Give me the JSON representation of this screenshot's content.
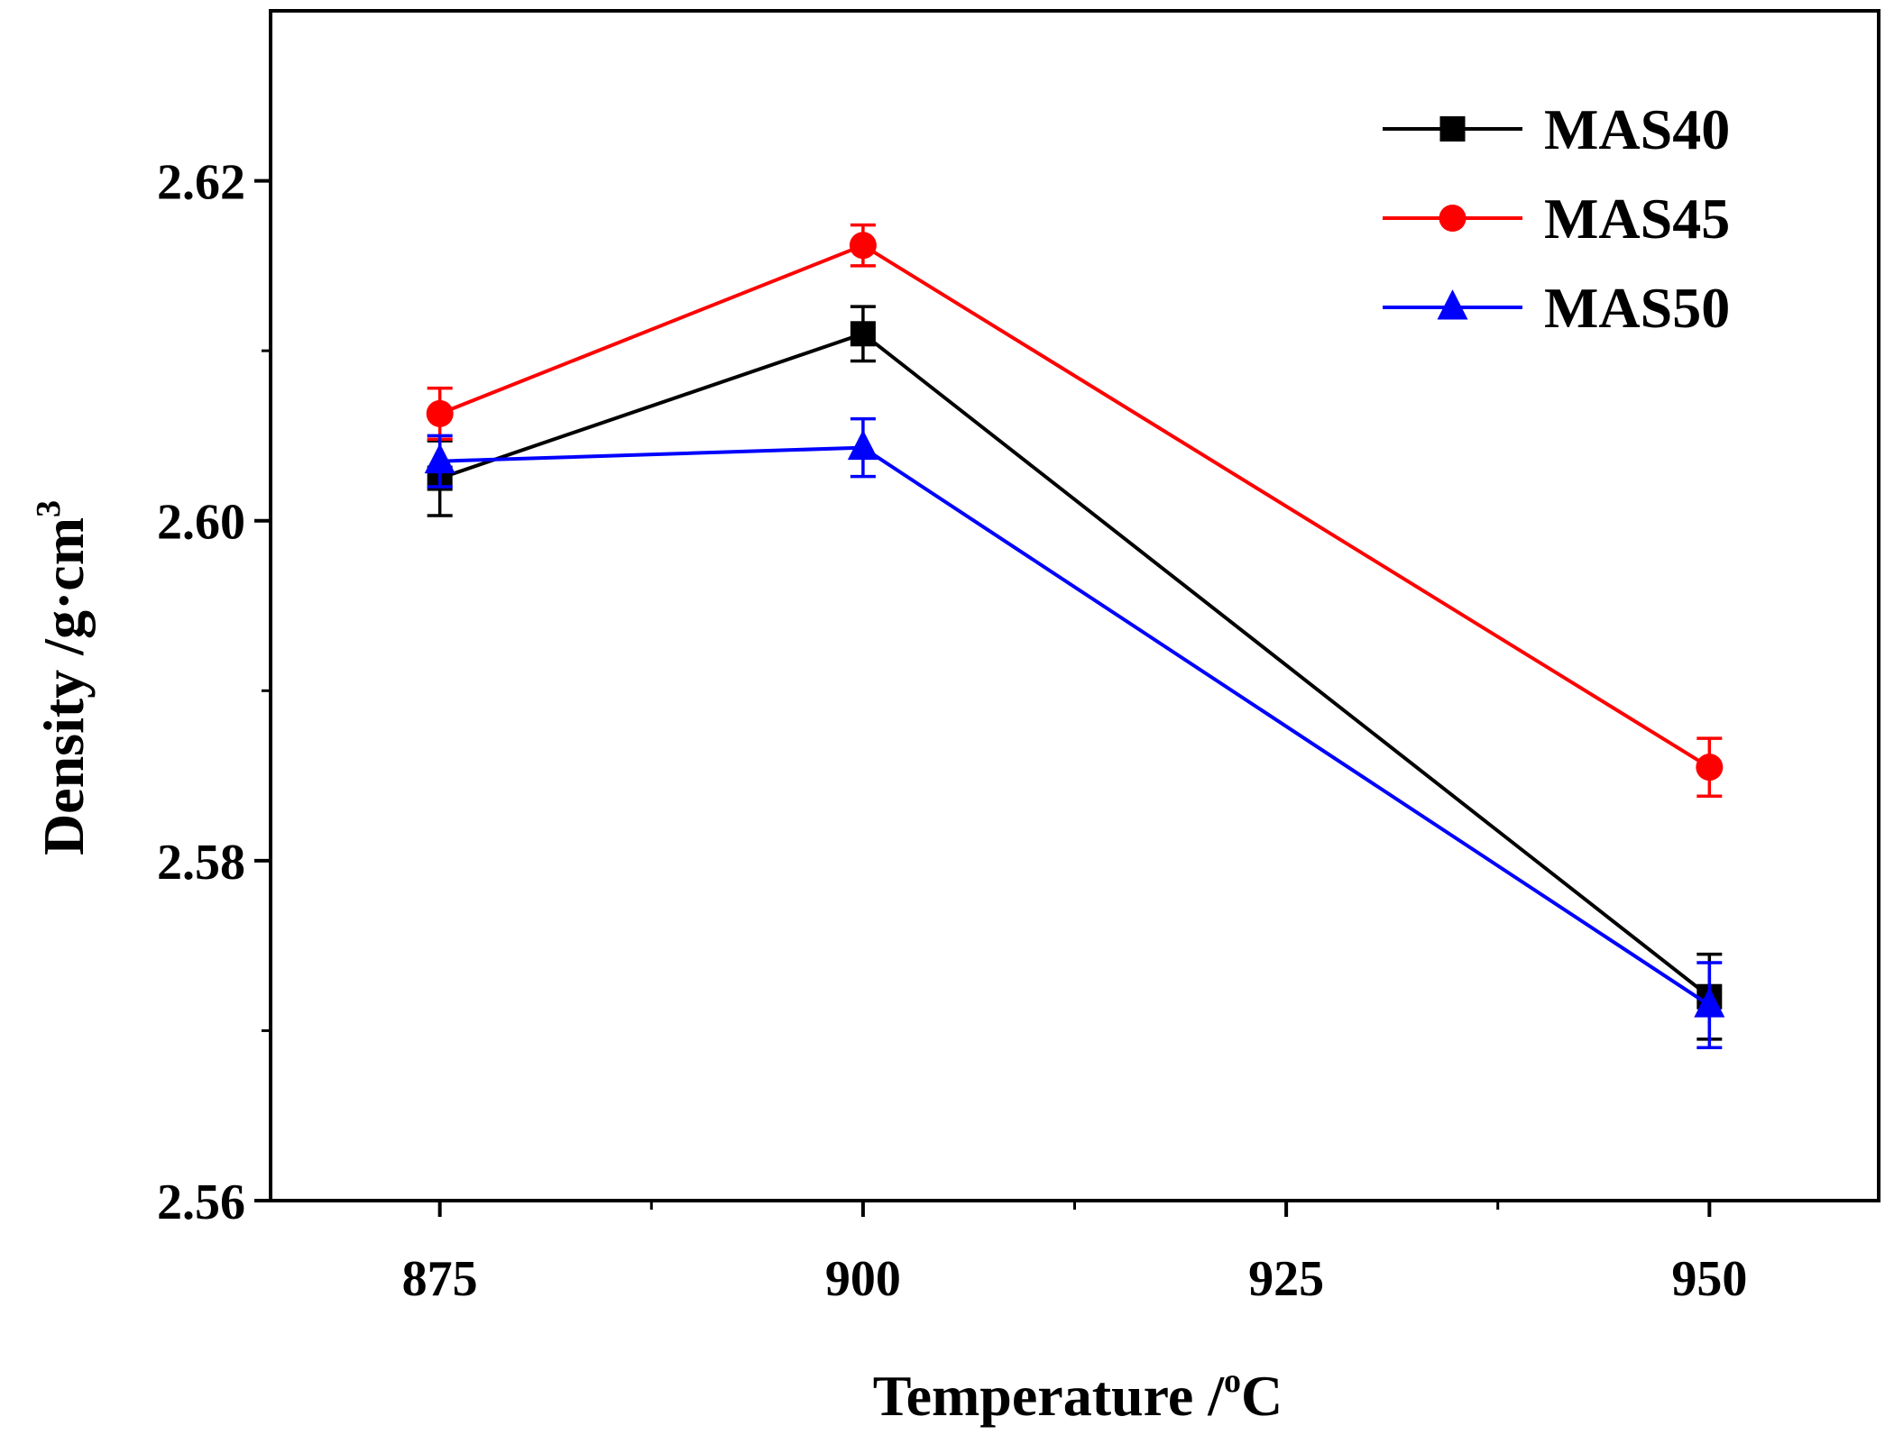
{
  "chart_data": {
    "type": "line",
    "xlabel": "Temperature /",
    "xlabel_unit_sup": "o",
    "xlabel_unit": "C",
    "ylabel": "Density /g·cm",
    "ylabel_sup": "3",
    "xlim": [
      865,
      960
    ],
    "ylim": [
      2.56,
      2.63
    ],
    "x_ticks": [
      875,
      900,
      925,
      950
    ],
    "y_ticks": [
      2.56,
      2.58,
      2.6,
      2.62
    ],
    "y_tick_labels": [
      "2.56",
      "2.58",
      "2.60",
      "2.62"
    ],
    "x_tick_labels": [
      "875",
      "900",
      "925",
      "950"
    ],
    "legend_position": "top-right",
    "grid": false,
    "series": [
      {
        "name": "MAS40",
        "color": "#000000",
        "marker": "square",
        "x": [
          875,
          900,
          950
        ],
        "y": [
          2.6025,
          2.611,
          2.572
        ],
        "err": [
          0.0022,
          0.0016,
          0.0025
        ]
      },
      {
        "name": "MAS45",
        "color": "#ff0000",
        "marker": "circle",
        "x": [
          875,
          900,
          950
        ],
        "y": [
          2.6063,
          2.6162,
          2.5855
        ],
        "err": [
          0.0015,
          0.0012,
          0.0017
        ]
      },
      {
        "name": "MAS50",
        "color": "#0000ff",
        "marker": "triangle",
        "x": [
          875,
          900,
          950
        ],
        "y": [
          2.6035,
          2.6043,
          2.5715
        ],
        "err": [
          0.0015,
          0.0017,
          0.0025
        ]
      }
    ]
  }
}
